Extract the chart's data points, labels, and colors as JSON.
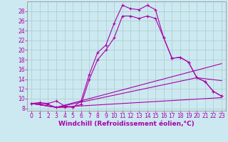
{
  "xlabel": "Windchill (Refroidissement éolien,°C)",
  "bg_color": "#cce8f0",
  "line_color": "#aa00aa",
  "grid_color": "#aacccc",
  "xlim": [
    -0.5,
    23.5
  ],
  "ylim": [
    7.5,
    30
  ],
  "yticks": [
    8,
    10,
    12,
    14,
    16,
    18,
    20,
    22,
    24,
    26,
    28
  ],
  "xticks": [
    0,
    1,
    2,
    3,
    4,
    5,
    6,
    7,
    8,
    9,
    10,
    11,
    12,
    13,
    14,
    15,
    16,
    17,
    18,
    19,
    20,
    21,
    22,
    23
  ],
  "line1_x": [
    0,
    1,
    2,
    3,
    4,
    5,
    6,
    7,
    8,
    9,
    10,
    11,
    12,
    13,
    14,
    15,
    16,
    17,
    18,
    19,
    20,
    21,
    22,
    23
  ],
  "line1_y": [
    9.0,
    9.2,
    9.0,
    9.5,
    8.5,
    8.2,
    9.5,
    15.0,
    19.5,
    21.0,
    25.5,
    29.2,
    28.5,
    28.3,
    29.2,
    28.3,
    22.5,
    18.3,
    18.5,
    17.5,
    14.3,
    13.5,
    11.5,
    10.5
  ],
  "line2_x": [
    0,
    1,
    2,
    3,
    4,
    5,
    6,
    7,
    8,
    9,
    10,
    11,
    12,
    13,
    14,
    15,
    16,
    17,
    18,
    19,
    20,
    21,
    22,
    23
  ],
  "line2_y": [
    9.0,
    9.0,
    8.8,
    8.2,
    8.2,
    8.3,
    8.8,
    14.0,
    18.0,
    20.0,
    22.5,
    27.0,
    27.0,
    26.5,
    27.0,
    26.5,
    22.5,
    18.3,
    18.5,
    17.5,
    14.3,
    13.5,
    11.5,
    10.5
  ],
  "line3_x": [
    0,
    3,
    23
  ],
  "line3_y": [
    9.0,
    8.2,
    10.2
  ],
  "line4_x": [
    0,
    3,
    20,
    23
  ],
  "line4_y": [
    9.0,
    8.2,
    14.3,
    13.7
  ],
  "line5_x": [
    0,
    3,
    23
  ],
  "line5_y": [
    9.0,
    8.2,
    17.2
  ],
  "tick_fontsize": 5.5,
  "xlabel_fontsize": 6.5
}
